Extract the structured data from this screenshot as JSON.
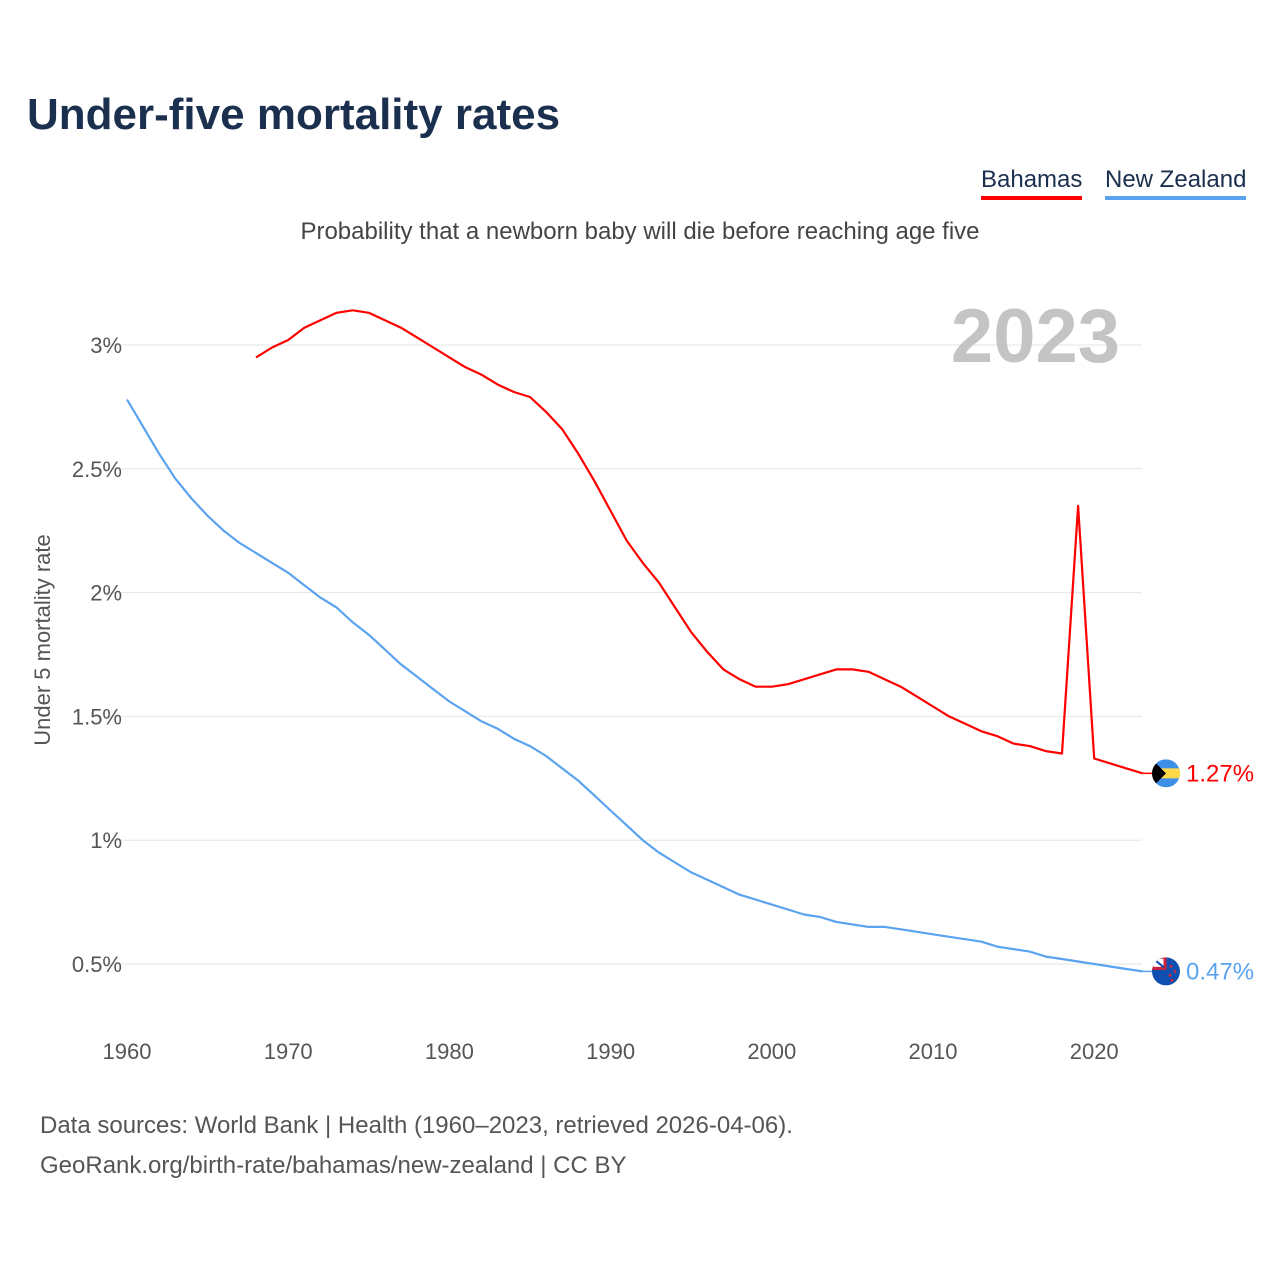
{
  "chart_data": {
    "type": "line",
    "title": "Under-five mortality rates",
    "subtitle": "Probability that a newborn baby will die before reaching age five",
    "ylabel": "Under 5 mortality rate",
    "xlabel": "",
    "year_label": "2023",
    "xlim": [
      1960,
      2023
    ],
    "ylim": [
      0.3,
      3.3
    ],
    "x_ticks": [
      1960,
      1970,
      1980,
      1990,
      2000,
      2010,
      2020
    ],
    "x_tick_labels": [
      "1960",
      "1970",
      "1980",
      "1990",
      "2000",
      "2010",
      "2020"
    ],
    "y_ticks": [
      0.5,
      1,
      1.5,
      2,
      2.5,
      3
    ],
    "y_tick_labels": [
      "0.5%",
      "1%",
      "1.5%",
      "2%",
      "2.5%",
      "3%"
    ],
    "grid": true,
    "legend_position": "top-right",
    "series": [
      {
        "name": "Bahamas",
        "color": "#ff0000",
        "end_label": "1.27%",
        "flag": "bahamas-flag",
        "x_start": 1968,
        "values": [
          2.95,
          2.99,
          3.02,
          3.07,
          3.1,
          3.13,
          3.14,
          3.13,
          3.1,
          3.07,
          3.03,
          2.99,
          2.95,
          2.91,
          2.88,
          2.84,
          2.81,
          2.79,
          2.73,
          2.66,
          2.56,
          2.45,
          2.33,
          2.21,
          2.12,
          2.04,
          1.94,
          1.84,
          1.76,
          1.69,
          1.65,
          1.62,
          1.62,
          1.63,
          1.65,
          1.67,
          1.69,
          1.69,
          1.68,
          1.65,
          1.62,
          1.58,
          1.54,
          1.5,
          1.47,
          1.44,
          1.42,
          1.39,
          1.38,
          1.36,
          1.35,
          2.35,
          1.33,
          1.31,
          1.29,
          1.27
        ]
      },
      {
        "name": "New Zealand",
        "color": "#5ba3ef",
        "end_label": "0.47%",
        "flag": "new-zealand-flag",
        "x_start": 1960,
        "values": [
          2.78,
          2.67,
          2.56,
          2.46,
          2.38,
          2.31,
          2.25,
          2.2,
          2.16,
          2.12,
          2.08,
          2.03,
          1.98,
          1.94,
          1.88,
          1.83,
          1.77,
          1.71,
          1.66,
          1.61,
          1.56,
          1.52,
          1.48,
          1.45,
          1.41,
          1.38,
          1.34,
          1.29,
          1.24,
          1.18,
          1.12,
          1.06,
          1.0,
          0.95,
          0.91,
          0.87,
          0.84,
          0.81,
          0.78,
          0.76,
          0.74,
          0.72,
          0.7,
          0.69,
          0.67,
          0.66,
          0.65,
          0.65,
          0.64,
          0.63,
          0.62,
          0.61,
          0.6,
          0.59,
          0.57,
          0.56,
          0.55,
          0.53,
          0.52,
          0.51,
          0.5,
          0.49,
          0.48,
          0.47
        ]
      }
    ]
  },
  "footer": {
    "line1": "Data sources: World Bank | Health (1960–2023, retrieved 2026-04-06).",
    "line2": "GeoRank.org/birth-rate/bahamas/new-zealand | CC BY"
  }
}
